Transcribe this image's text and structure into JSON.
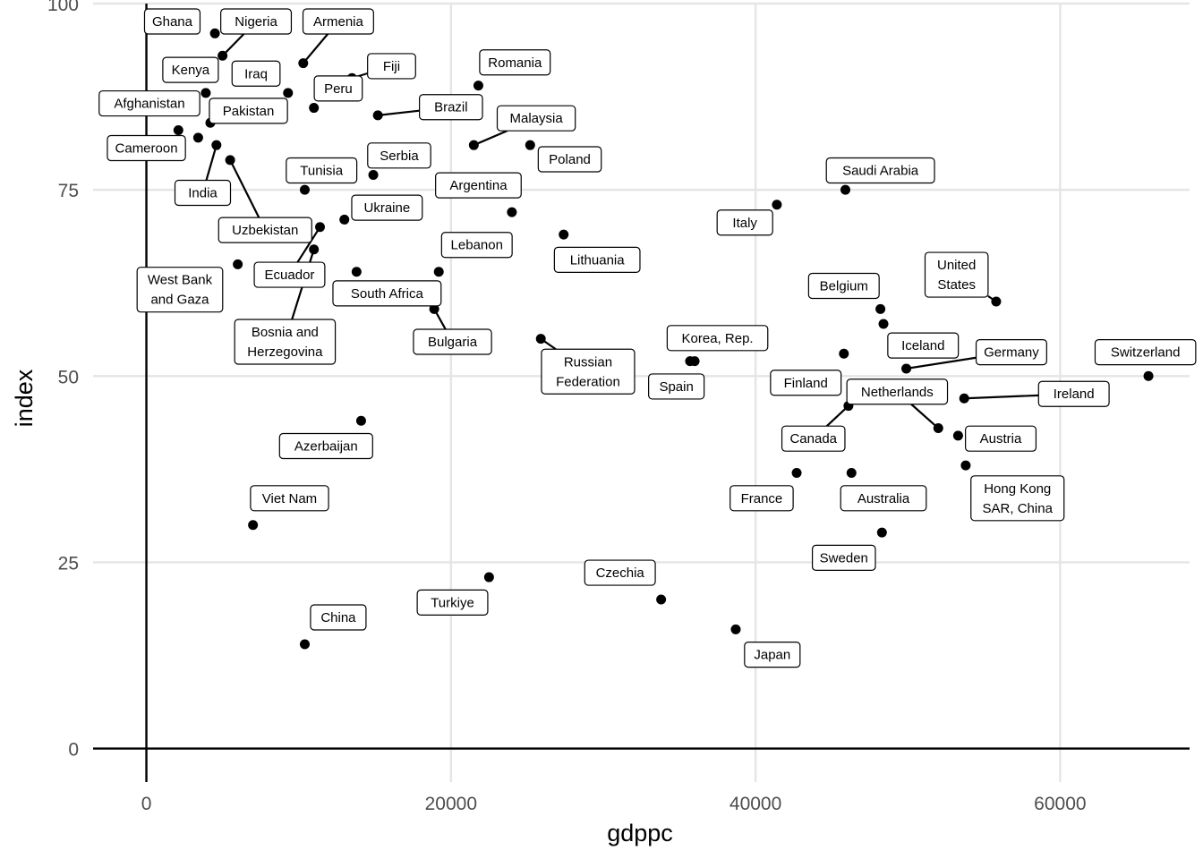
{
  "chart_data": {
    "type": "scatter",
    "title": "",
    "xlabel": "gdppc",
    "ylabel": "index",
    "xlim": [
      -3500,
      68500
    ],
    "ylim": [
      -4.5,
      100
    ],
    "x_ticks": [
      0,
      20000,
      40000,
      60000
    ],
    "y_ticks": [
      0,
      25,
      50,
      75,
      100
    ],
    "grid": true,
    "reference_lines": [
      "x=0",
      "y=0"
    ],
    "point_color": "#000000",
    "label_style": "boxed repelled labels",
    "points": [
      {
        "name": "Ghana",
        "x": 4500,
        "y": 96
      },
      {
        "name": "Nigeria",
        "x": 5000,
        "y": 93
      },
      {
        "name": "Armenia",
        "x": 10300,
        "y": 92
      },
      {
        "name": "Fiji",
        "x": 13500,
        "y": 90
      },
      {
        "name": "Kenya",
        "x": 3900,
        "y": 88
      },
      {
        "name": "Iraq",
        "x": 9300,
        "y": 88
      },
      {
        "name": "Romania",
        "x": 21800,
        "y": 89
      },
      {
        "name": "Peru",
        "x": 11000,
        "y": 86
      },
      {
        "name": "Brazil",
        "x": 15200,
        "y": 85
      },
      {
        "name": "Afghanistan",
        "x": 2100,
        "y": 83
      },
      {
        "name": "Pakistan",
        "x": 4200,
        "y": 84
      },
      {
        "name": "Cameroon",
        "x": 3400,
        "y": 82
      },
      {
        "name": "Malaysia",
        "x": 21500,
        "y": 81
      },
      {
        "name": "India",
        "x": 4600,
        "y": 81
      },
      {
        "name": "Poland",
        "x": 25200,
        "y": 81
      },
      {
        "name": "Serbia",
        "x": 14900,
        "y": 77
      },
      {
        "name": "Tunisia",
        "x": 10400,
        "y": 75
      },
      {
        "name": "Uzbekistan",
        "x": 5500,
        "y": 79
      },
      {
        "name": "Argentina",
        "x": 24000,
        "y": 72
      },
      {
        "name": "Ukraine",
        "x": 13000,
        "y": 71
      },
      {
        "name": "Lithuania",
        "x": 27400,
        "y": 69
      },
      {
        "name": "Lebanon",
        "x": 19200,
        "y": 64
      },
      {
        "name": "Ecuador",
        "x": 11400,
        "y": 70
      },
      {
        "name": "West Bank and Gaza",
        "x": 6000,
        "y": 65
      },
      {
        "name": "Bosnia and Herzegovina",
        "x": 11000,
        "y": 67
      },
      {
        "name": "South Africa",
        "x": 13800,
        "y": 64
      },
      {
        "name": "Bulgaria",
        "x": 18900,
        "y": 59
      },
      {
        "name": "Russian Federation",
        "x": 25900,
        "y": 55
      },
      {
        "name": "Korea, Rep.",
        "x": 36000,
        "y": 52
      },
      {
        "name": "Spain",
        "x": 35700,
        "y": 52
      },
      {
        "name": "Saudi Arabia",
        "x": 45900,
        "y": 75
      },
      {
        "name": "Italy",
        "x": 41400,
        "y": 73
      },
      {
        "name": "Belgium",
        "x": 48200,
        "y": 59
      },
      {
        "name": "United States",
        "x": 55800,
        "y": 60
      },
      {
        "name": "Iceland",
        "x": 48400,
        "y": 57
      },
      {
        "name": "Germany",
        "x": 49900,
        "y": 51
      },
      {
        "name": "Finland",
        "x": 45800,
        "y": 53
      },
      {
        "name": "Switzerland",
        "x": 65800,
        "y": 50
      },
      {
        "name": "Netherlands",
        "x": 52000,
        "y": 43
      },
      {
        "name": "Ireland",
        "x": 53700,
        "y": 47
      },
      {
        "name": "Canada",
        "x": 46100,
        "y": 46
      },
      {
        "name": "Austria",
        "x": 53300,
        "y": 42
      },
      {
        "name": "Hong Kong SAR, China",
        "x": 53800,
        "y": 38
      },
      {
        "name": "France",
        "x": 42700,
        "y": 37
      },
      {
        "name": "Australia",
        "x": 46300,
        "y": 37
      },
      {
        "name": "Sweden",
        "x": 48300,
        "y": 29
      },
      {
        "name": "Azerbaijan",
        "x": 14100,
        "y": 44
      },
      {
        "name": "Viet Nam",
        "x": 7000,
        "y": 30
      },
      {
        "name": "Czechia",
        "x": 33800,
        "y": 20
      },
      {
        "name": "Turkiye",
        "x": 22500,
        "y": 23
      },
      {
        "name": "Japan",
        "x": 38700,
        "y": 16
      },
      {
        "name": "China",
        "x": 10400,
        "y": 14
      }
    ],
    "labels": [
      {
        "text": [
          "Ghana"
        ],
        "at": [
          1700,
          97.6
        ],
        "point": 0
      },
      {
        "text": [
          "Nigeria"
        ],
        "at": [
          7200,
          97.6
        ],
        "point": 1
      },
      {
        "text": [
          "Armenia"
        ],
        "at": [
          12600,
          97.6
        ],
        "point": 2
      },
      {
        "text": [
          "Fiji"
        ],
        "at": [
          16100,
          91.6
        ],
        "point": 3
      },
      {
        "text": [
          "Kenya"
        ],
        "at": [
          2900,
          91.1
        ],
        "point": 4
      },
      {
        "text": [
          "Iraq"
        ],
        "at": [
          7200,
          90.6
        ],
        "point": 5
      },
      {
        "text": [
          "Romania"
        ],
        "at": [
          24200,
          92.1
        ],
        "point": 6
      },
      {
        "text": [
          "Peru"
        ],
        "at": [
          12600,
          88.6
        ],
        "point": 7
      },
      {
        "text": [
          "Brazil"
        ],
        "at": [
          20000,
          86.1
        ],
        "point": 8
      },
      {
        "text": [
          "Afghanistan"
        ],
        "at": [
          200,
          86.6
        ],
        "point": 9
      },
      {
        "text": [
          "Pakistan"
        ],
        "at": [
          6700,
          85.6
        ],
        "point": 10
      },
      {
        "text": [
          "Cameroon"
        ],
        "at": [
          0,
          80.6
        ],
        "point": 11
      },
      {
        "text": [
          "Malaysia"
        ],
        "at": [
          25600,
          84.6
        ],
        "point": 12
      },
      {
        "text": [
          "India"
        ],
        "at": [
          3700,
          74.6
        ],
        "point": 13
      },
      {
        "text": [
          "Poland"
        ],
        "at": [
          27800,
          79.1
        ],
        "point": 14
      },
      {
        "text": [
          "Serbia"
        ],
        "at": [
          16600,
          79.6
        ],
        "point": 15
      },
      {
        "text": [
          "Tunisia"
        ],
        "at": [
          11500,
          77.6
        ],
        "point": 16
      },
      {
        "text": [
          "Uzbekistan"
        ],
        "at": [
          7800,
          69.6
        ],
        "point": 17
      },
      {
        "text": [
          "Argentina"
        ],
        "at": [
          21800,
          75.6
        ],
        "point": 18
      },
      {
        "text": [
          "Ukraine"
        ],
        "at": [
          15800,
          72.6
        ],
        "point": 19
      },
      {
        "text": [
          "Lithuania"
        ],
        "at": [
          29600,
          65.6
        ],
        "point": 20
      },
      {
        "text": [
          "Lebanon"
        ],
        "at": [
          21700,
          67.6
        ],
        "point": 21
      },
      {
        "text": [
          "Ecuador"
        ],
        "at": [
          9400,
          63.6
        ],
        "point": 22
      },
      {
        "text": [
          "West Bank",
          "and Gaza"
        ],
        "at": [
          2200,
          61.6
        ],
        "point": 23
      },
      {
        "text": [
          "Bosnia and",
          "Herzegovina"
        ],
        "at": [
          9100,
          54.6
        ],
        "point": 24
      },
      {
        "text": [
          "South Africa"
        ],
        "at": [
          15800,
          61.1
        ],
        "point": 25
      },
      {
        "text": [
          "Bulgaria"
        ],
        "at": [
          20100,
          54.6
        ],
        "point": 26
      },
      {
        "text": [
          "Russian",
          "Federation"
        ],
        "at": [
          29000,
          50.6
        ],
        "point": 27
      },
      {
        "text": [
          "Korea, Rep."
        ],
        "at": [
          37500,
          55.1
        ],
        "point": 28
      },
      {
        "text": [
          "Spain"
        ],
        "at": [
          34800,
          48.6
        ],
        "point": 29
      },
      {
        "text": [
          "Saudi Arabia"
        ],
        "at": [
          48200,
          77.6
        ],
        "point": 30
      },
      {
        "text": [
          "Italy"
        ],
        "at": [
          39300,
          70.6
        ],
        "point": 31
      },
      {
        "text": [
          "Belgium"
        ],
        "at": [
          45800,
          62.1
        ],
        "point": 32
      },
      {
        "text": [
          "United",
          "States"
        ],
        "at": [
          53200,
          63.6
        ],
        "point": 33
      },
      {
        "text": [
          "Iceland"
        ],
        "at": [
          51000,
          54.1
        ],
        "point": 34
      },
      {
        "text": [
          "Germany"
        ],
        "at": [
          56800,
          53.2
        ],
        "point": 35
      },
      {
        "text": [
          "Finland"
        ],
        "at": [
          43300,
          49.1
        ],
        "point": 36
      },
      {
        "text": [
          "Switzerland"
        ],
        "at": [
          65600,
          53.2
        ],
        "point": 37
      },
      {
        "text": [
          "Netherlands"
        ],
        "at": [
          49300,
          47.9
        ],
        "point": 38
      },
      {
        "text": [
          "Ireland"
        ],
        "at": [
          60900,
          47.6
        ],
        "point": 39
      },
      {
        "text": [
          "Canada"
        ],
        "at": [
          43800,
          41.6
        ],
        "point": 40
      },
      {
        "text": [
          "Austria"
        ],
        "at": [
          56100,
          41.6
        ],
        "point": 41
      },
      {
        "text": [
          "Hong Kong",
          "SAR, China"
        ],
        "at": [
          57200,
          33.6
        ],
        "point": 42
      },
      {
        "text": [
          "France"
        ],
        "at": [
          40400,
          33.6
        ],
        "point": 43
      },
      {
        "text": [
          "Australia"
        ],
        "at": [
          48400,
          33.6
        ],
        "point": 44
      },
      {
        "text": [
          "Sweden"
        ],
        "at": [
          45800,
          25.6
        ],
        "point": 45
      },
      {
        "text": [
          "Azerbaijan"
        ],
        "at": [
          11800,
          40.6
        ],
        "point": 46
      },
      {
        "text": [
          "Viet Nam"
        ],
        "at": [
          9400,
          33.6
        ],
        "point": 47
      },
      {
        "text": [
          "Czechia"
        ],
        "at": [
          31100,
          23.6
        ],
        "point": 48
      },
      {
        "text": [
          "Turkiye"
        ],
        "at": [
          20100,
          19.6
        ],
        "point": 49
      },
      {
        "text": [
          "Japan"
        ],
        "at": [
          41100,
          12.6
        ],
        "point": 50
      },
      {
        "text": [
          "China"
        ],
        "at": [
          12600,
          17.6
        ],
        "point": 51
      }
    ],
    "leaders": [
      1,
      2,
      3,
      8,
      12,
      13,
      17,
      22,
      24,
      26,
      27,
      33,
      35,
      38,
      39,
      40
    ]
  }
}
